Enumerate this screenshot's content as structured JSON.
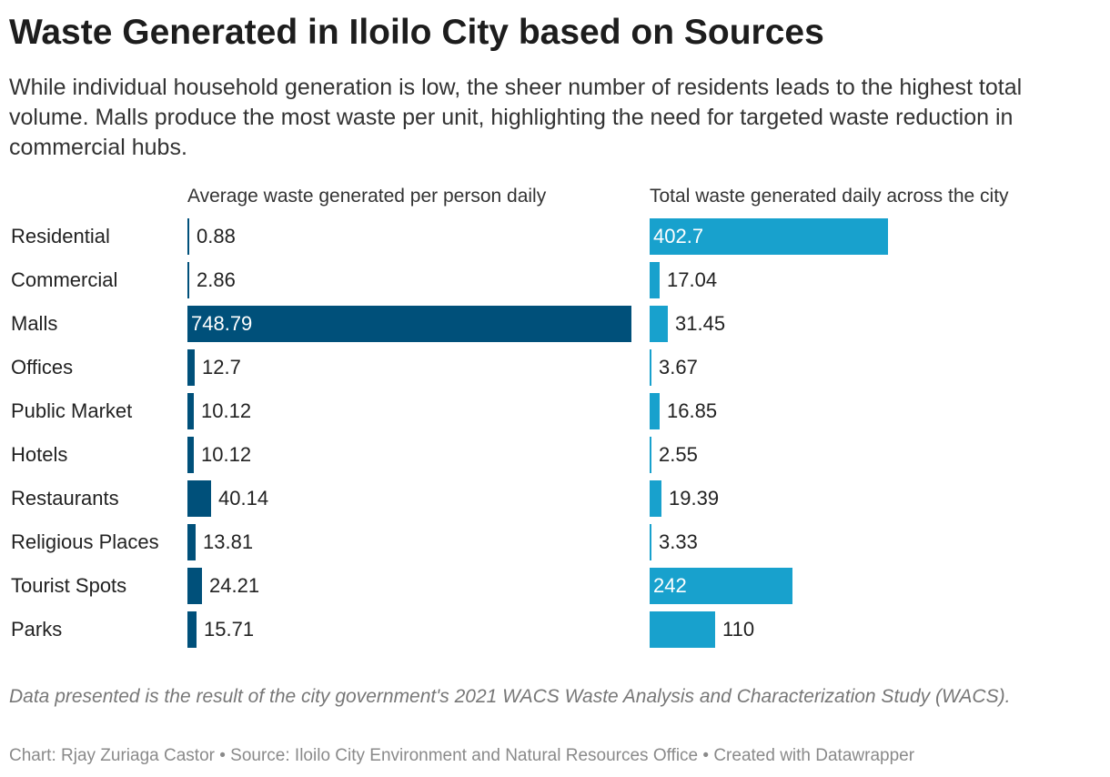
{
  "title": "Waste Generated in Iloilo City based on Sources",
  "subtitle": "While individual household generation is low, the sheer number of residents leads to the highest total volume. Malls produce the most waste per unit, highlighting the need for targeted waste reduction in commercial hubs.",
  "note": "Data presented is the result of the city government's 2021 WACS Waste Analysis and Characterization Study (WACS).",
  "footer": "Chart: Rjay Zuriaga Castor • Source: Iloilo City Environment and Natural Resources Office • Created with Datawrapper",
  "colors": {
    "per_person": "#00507a",
    "total": "#18a1cd"
  },
  "chart_data": {
    "type": "bar",
    "orientation": "horizontal",
    "categories": [
      "Residential",
      "Commercial",
      "Malls",
      "Offices",
      "Public Market",
      "Hotels",
      "Restaurants",
      "Religious Places",
      "Tourist Spots",
      "Parks"
    ],
    "series": [
      {
        "name": "Average waste generated per person daily",
        "values": [
          0.88,
          2.86,
          748.79,
          12.7,
          10.12,
          10.12,
          40.14,
          13.81,
          24.21,
          15.71
        ],
        "labels": [
          "0.88",
          "2.86",
          "748.79",
          "12.7",
          "10.12",
          "10.12",
          "40.14",
          "13.81",
          "24.21",
          "15.71"
        ],
        "xlim": [
          0,
          748.79
        ]
      },
      {
        "name": "Total waste generated daily across the city",
        "values": [
          402.7,
          17.04,
          31.45,
          3.67,
          16.85,
          2.55,
          19.39,
          3.33,
          242,
          110
        ],
        "labels": [
          "402.7",
          "17.04",
          "31.45",
          "3.67",
          "16.85",
          "2.55",
          "19.39",
          "3.33",
          "242",
          "110"
        ],
        "xlim": [
          0,
          402.7
        ]
      }
    ],
    "title": "Waste Generated in Iloilo City based on Sources",
    "xlabel": "",
    "ylabel": "",
    "grid": false,
    "legend": "none"
  }
}
